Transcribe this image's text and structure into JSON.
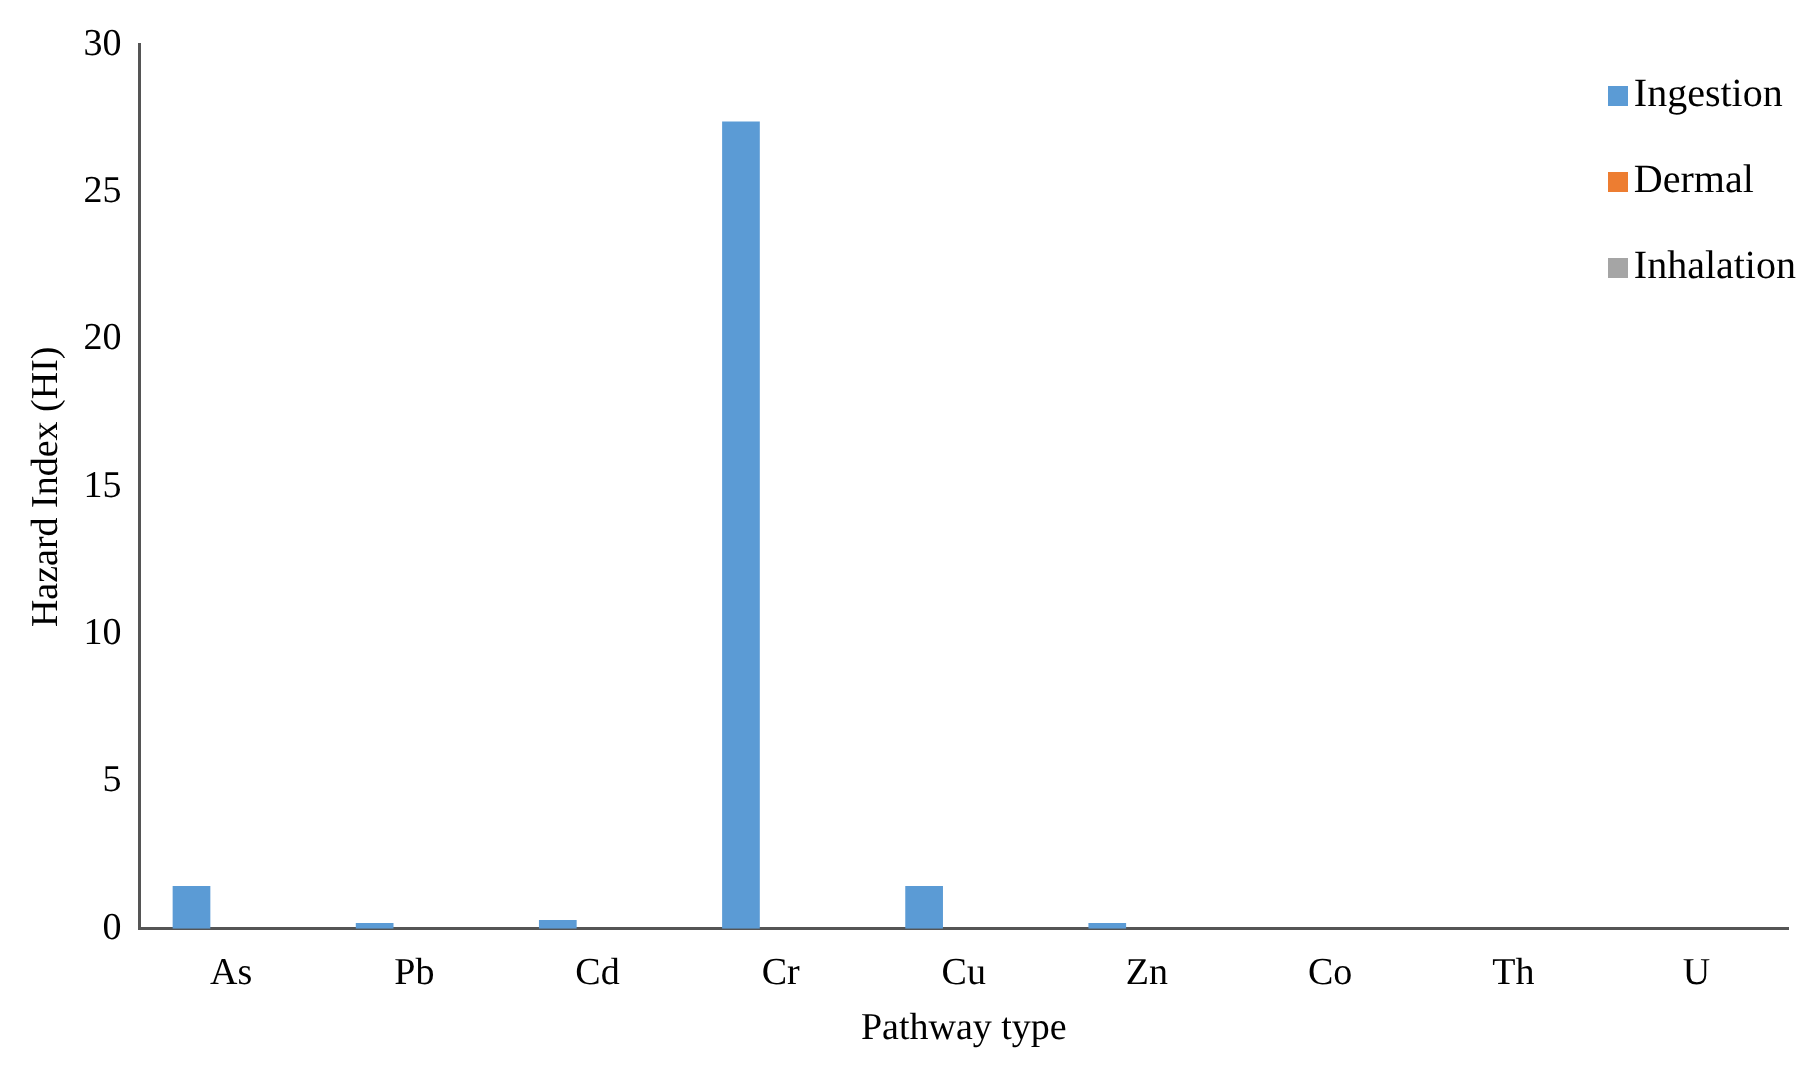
{
  "chart_data": {
    "type": "bar",
    "xlabel": "Pathway type",
    "ylabel": "Hazard Index (HI)",
    "categories": [
      "As",
      "Pb",
      "Cd",
      "Cr",
      "Cu",
      "Zn",
      "Co",
      "Th",
      "U"
    ],
    "series": [
      {
        "name": "Ingestion",
        "color": "#5b9bd5",
        "values": [
          1.45,
          0.2,
          0.3,
          27.4,
          1.45,
          0.2,
          0,
          0,
          0
        ]
      },
      {
        "name": "Dermal",
        "color": "#ed7d31",
        "values": [
          0,
          0,
          0,
          0,
          0,
          0,
          0,
          0,
          0
        ]
      },
      {
        "name": "Inhalation",
        "color": "#a5a5a5",
        "values": [
          0,
          0,
          0,
          0,
          0,
          0,
          0,
          0,
          0
        ]
      }
    ],
    "ylim": [
      0,
      30
    ],
    "yticks": [
      0,
      5,
      10,
      15,
      20,
      25,
      30
    ],
    "grid": false,
    "legend": "top right"
  }
}
